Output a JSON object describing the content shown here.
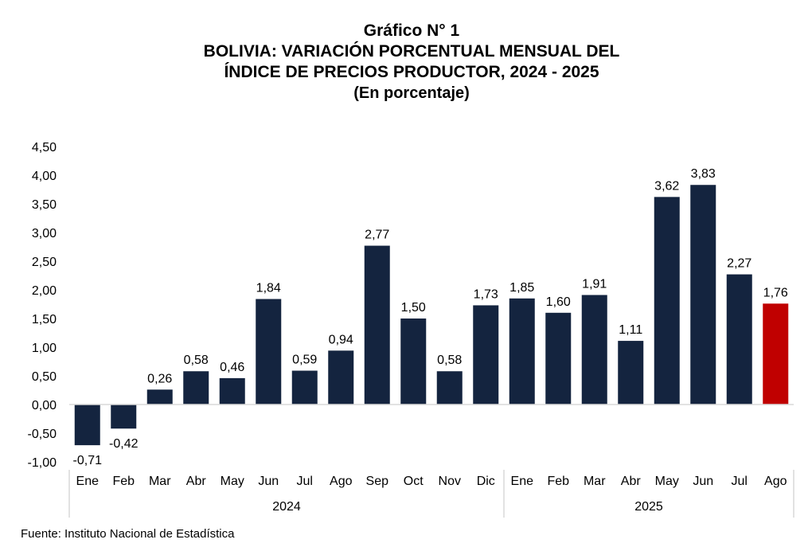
{
  "chart_data": {
    "type": "bar",
    "title": "Gráfico N° 1",
    "subtitle_lines": [
      "BOLIVIA: VARIACIÓN PORCENTUAL MENSUAL DEL",
      "ÍNDICE DE PRECIOS PRODUCTOR, 2024 - 2025",
      "(En porcentaje)"
    ],
    "categories": [
      "Ene",
      "Feb",
      "Mar",
      "Abr",
      "May",
      "Jun",
      "Jul",
      "Ago",
      "Sep",
      "Oct",
      "Nov",
      "Dic",
      "Ene",
      "Feb",
      "Mar",
      "Abr",
      "May",
      "Jun",
      "Jul",
      "Ago"
    ],
    "values": [
      -0.71,
      -0.42,
      0.26,
      0.58,
      0.46,
      1.84,
      0.59,
      0.94,
      2.77,
      1.5,
      0.58,
      1.73,
      1.85,
      1.6,
      1.91,
      1.11,
      3.62,
      3.83,
      2.27,
      1.76
    ],
    "value_labels": [
      "-0,71",
      "-0,42",
      "0,26",
      "0,58",
      "0,46",
      "1,84",
      "0,59",
      "0,94",
      "2,77",
      "1,50",
      "0,58",
      "1,73",
      "1,85",
      "1,60",
      "1,91",
      "1,11",
      "3,62",
      "3,83",
      "2,27",
      "1,76"
    ],
    "groups": [
      {
        "label": "2024",
        "count": 12
      },
      {
        "label": "2025",
        "count": 8
      }
    ],
    "ylim": [
      -1.0,
      4.5
    ],
    "yticks": [
      4.5,
      4.0,
      3.5,
      3.0,
      2.5,
      2.0,
      1.5,
      1.0,
      0.5,
      0.0,
      -0.5,
      -1.0
    ],
    "ytick_labels": [
      "4,50",
      "4,00",
      "3,50",
      "3,00",
      "2,50",
      "2,00",
      "1,50",
      "1,00",
      "0,50",
      "0,00",
      "-0,50",
      "-1,00"
    ],
    "grid": false,
    "colors": {
      "bar": "#14243F",
      "highlight": "#C00000",
      "axis": "#D9D9D9"
    },
    "highlight_index": 19
  },
  "source": "Fuente: Instituto Nacional de Estadística"
}
